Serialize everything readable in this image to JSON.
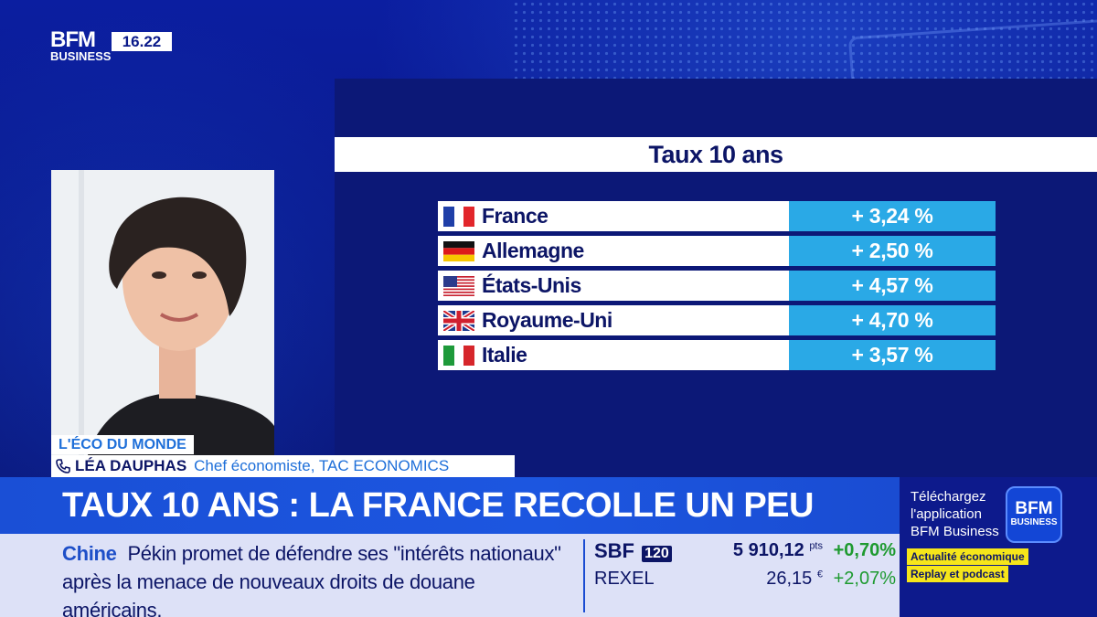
{
  "channel": {
    "logo_top": "BFM",
    "logo_bottom": "BUSINESS",
    "time": "16.22"
  },
  "chart_data": {
    "type": "table",
    "title": "Taux 10 ans",
    "categories": [
      "France",
      "Allemagne",
      "États-Unis",
      "Royaume-Uni",
      "Italie"
    ],
    "value_labels": [
      "+ 3,24 %",
      "+ 2,50 %",
      "+ 4,57 %",
      "+ 4,70 %",
      "+ 3,57 %"
    ],
    "values": [
      3.24,
      2.5,
      4.57,
      4.7,
      3.57
    ]
  },
  "guest": {
    "show": "L'ÉCO DU MONDE",
    "name": "LÉA DAUPHAS",
    "role": "Chef économiste, TAC ECONOMICS"
  },
  "headline": "TAUX 10 ANS : LA FRANCE RECOLLE UN PEU",
  "ticker": {
    "category": "Chine",
    "text": "Pékin promet de défendre ses \"intérêts nationaux\" après la menace de nouveaux droits de douane américains."
  },
  "market": {
    "index_name": "SBF",
    "index_num": "120",
    "index_value": "5 910,12",
    "index_unit": "pts",
    "index_change": "+0,70%",
    "stock_name": "REXEL",
    "stock_value": "26,15",
    "stock_unit": "€",
    "stock_change": "+2,07%"
  },
  "promo": {
    "line1": "Téléchargez",
    "line2": "l'application",
    "line3": "BFM Business",
    "logo_top": "BFM",
    "logo_bottom": "BUSINESS",
    "badge1": "Actualité économique",
    "badge2": "Replay et podcast"
  }
}
